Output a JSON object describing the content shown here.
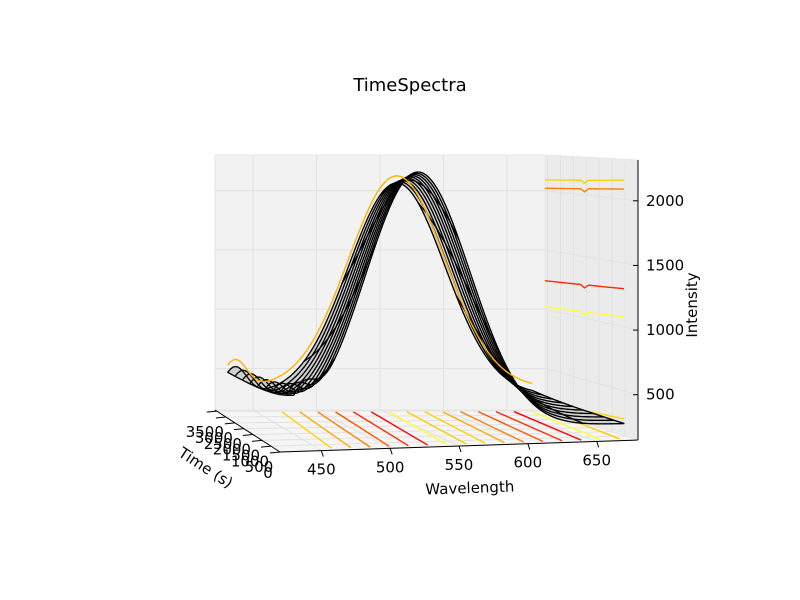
{
  "chart_data": {
    "type": "surface",
    "title": "TimeSpectra",
    "xlabel": "Wavelength",
    "ylabel": "Time (s)",
    "zlabel": "Intensity",
    "x_ticks": [
      "450",
      "500",
      "550",
      "600",
      "650"
    ],
    "y_ticks": [
      "0",
      "500",
      "1000",
      "1500",
      "2000",
      "2500",
      "3000",
      "3500"
    ],
    "z_ticks": [
      "500",
      "1000",
      "1500",
      "2000"
    ],
    "xlim": [
      420,
      680
    ],
    "ylim": [
      0,
      3600
    ],
    "zlim": [
      150,
      2300
    ],
    "surface": {
      "wavelength_min": 430,
      "wavelength_max": 670,
      "wavelength_step": 2,
      "times": [
        0,
        400,
        800,
        1200,
        1600,
        2000,
        2400,
        2800,
        3200,
        3600
      ],
      "baseline": 280,
      "main_peak": {
        "center_at_t0": 520,
        "shift_per_time": 0.012,
        "width": 38,
        "amplitude_at_t0": 2000,
        "amplitude_change_per_time": -0.06
      },
      "minor_peak": {
        "center": 436,
        "width": 9,
        "amplitude": 230
      }
    },
    "projections": {
      "wall_levels": [
        2150,
        2080,
        1300,
        1080,
        280
      ],
      "floor_offsets_time": [
        0,
        450,
        900,
        1350,
        1800,
        2250,
        2700,
        3150,
        3600
      ],
      "colors": [
        "#ffd400",
        "#ffaa00",
        "#ff7f00",
        "#ff5500",
        "#ff2a00",
        "#ff0000",
        "#ffff33",
        "#ffcc00"
      ]
    },
    "grid": true,
    "colors": {
      "surface": "#cccccc",
      "wire": "#000000",
      "pane": "#f2f2f2"
    }
  }
}
